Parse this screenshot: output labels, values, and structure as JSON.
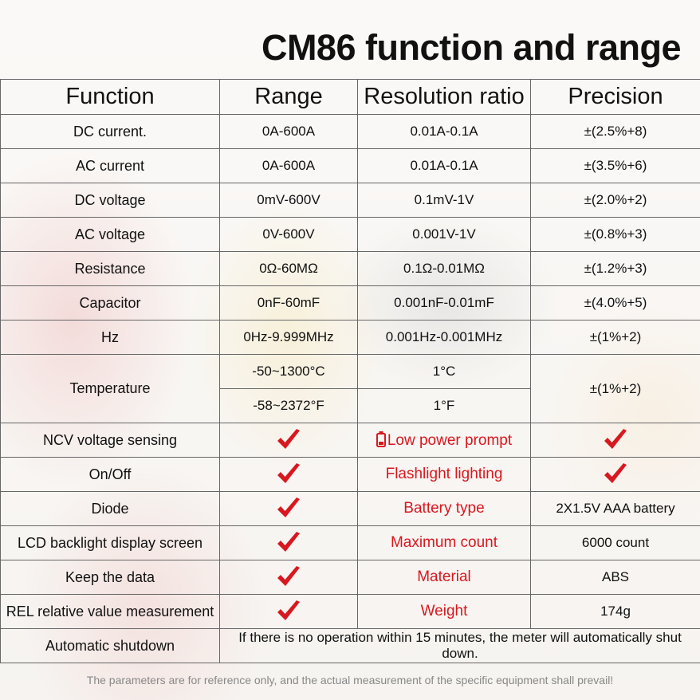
{
  "title": "CM86 function and range",
  "headers": {
    "function": "Function",
    "range": "Range",
    "resolution": "Resolution ratio",
    "precision": "Precision"
  },
  "rows": [
    {
      "function": "DC current.",
      "range": "0A-600A",
      "resolution": "0.01A-0.1A",
      "precision": "±(2.5%+8)"
    },
    {
      "function": "AC current",
      "range": "0A-600A",
      "resolution": "0.01A-0.1A",
      "precision": "±(3.5%+6)"
    },
    {
      "function": "DC voltage",
      "range": "0mV-600V",
      "resolution": "0.1mV-1V",
      "precision": "±(2.0%+2)"
    },
    {
      "function": "AC voltage",
      "range": "0V-600V",
      "resolution": "0.001V-1V",
      "precision": "±(0.8%+3)"
    },
    {
      "function": "Resistance",
      "range": "0Ω-60MΩ",
      "resolution": "0.1Ω-0.01MΩ",
      "precision": "±(1.2%+3)"
    },
    {
      "function": "Capacitor",
      "range": "0nF-60mF",
      "resolution": "0.001nF-0.01mF",
      "precision": "±(4.0%+5)"
    },
    {
      "function": "Hz",
      "range": "0Hz-9.999MHz",
      "resolution": "0.001Hz-0.001MHz",
      "precision": "±(1%+2)"
    }
  ],
  "temperature": {
    "function": "Temperature",
    "range_c": "-50~1300°C",
    "resolution_c": "1°C",
    "range_f": "-58~2372°F",
    "resolution_f": "1°F",
    "precision": "±(1%+2)"
  },
  "features": {
    "ncv": "NCV voltage sensing",
    "low_power": "Low power prompt",
    "onoff": "On/Off",
    "flashlight": "Flashlight lighting",
    "diode": "Diode",
    "battery_type_label": "Battery type",
    "battery_type_value": "2X1.5V AAA battery",
    "lcd": "LCD backlight display screen",
    "max_count_label": "Maximum count",
    "max_count_value": "6000 count",
    "keep_data": "Keep the data",
    "material_label": "Material",
    "material_value": "ABS",
    "rel": "REL relative value measurement",
    "weight_label": "Weight",
    "weight_value": "174g",
    "auto_shutdown": "Automatic shutdown",
    "auto_shutdown_value": "If there is no operation within 15 minutes, the meter will automatically shut down."
  },
  "note": "The parameters are for reference only, and the actual measurement of the specific equipment shall prevail!",
  "icons": {
    "check": "check-icon",
    "battery": "battery-icon"
  },
  "colors": {
    "accent_red": "#d81820",
    "text": "#111111",
    "border": "#666666",
    "note": "#888888"
  }
}
